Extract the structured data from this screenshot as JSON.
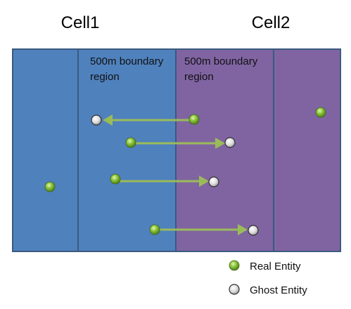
{
  "titles": {
    "cell1": "Cell1",
    "cell2": "Cell2"
  },
  "regions": {
    "left_boundary_label": [
      "500m boundary",
      "region"
    ],
    "right_boundary_label": [
      "500m boundary",
      "region"
    ]
  },
  "legend": {
    "real": "Real Entity",
    "ghost": "Ghost Entity"
  },
  "colors": {
    "cell1_fill": "#4f81bd",
    "cell2_fill": "#8064a2",
    "border": "#3a5a7e",
    "arrow": "#9bbb59",
    "real_entity": "#8dc63f",
    "ghost_entity": "#dcdcdc"
  }
}
